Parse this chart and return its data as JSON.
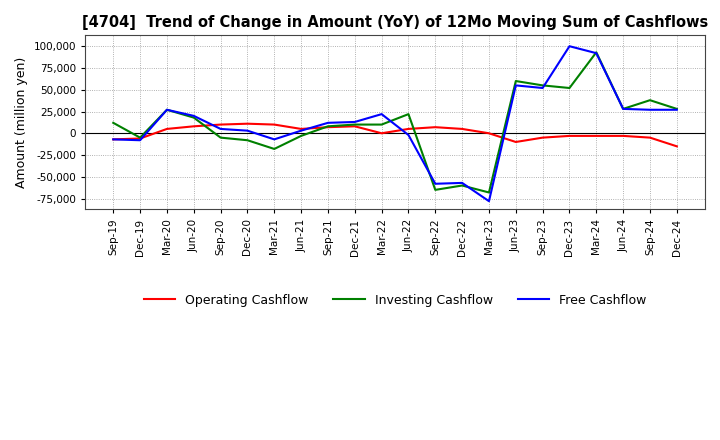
{
  "title": "[4704]  Trend of Change in Amount (YoY) of 12Mo Moving Sum of Cashflows",
  "ylabel": "Amount (million yen)",
  "background_color": "#ffffff",
  "grid_color": "#aaaaaa",
  "xlabels": [
    "Sep-19",
    "Dec-19",
    "Mar-20",
    "Jun-20",
    "Sep-20",
    "Dec-20",
    "Mar-21",
    "Jun-21",
    "Sep-21",
    "Dec-21",
    "Mar-22",
    "Jun-22",
    "Sep-22",
    "Dec-22",
    "Mar-23",
    "Jun-23",
    "Sep-23",
    "Dec-23",
    "Mar-24",
    "Jun-24",
    "Sep-24",
    "Dec-24"
  ],
  "operating": [
    -7000,
    -6000,
    5000,
    8000,
    10000,
    11000,
    10000,
    5000,
    7000,
    8000,
    0,
    5000,
    7000,
    5000,
    0,
    -10000,
    -5000,
    -3000,
    -3000,
    -3000,
    -5000,
    -15000
  ],
  "investing": [
    12000,
    -5000,
    27000,
    18000,
    -5000,
    -8000,
    -18000,
    -3000,
    8000,
    10000,
    10000,
    22000,
    -65000,
    -60000,
    -68000,
    60000,
    55000,
    52000,
    93000,
    28000,
    38000,
    28000
  ],
  "free": [
    -7000,
    -8000,
    27000,
    20000,
    5000,
    3000,
    -7000,
    3000,
    12000,
    13000,
    22000,
    -2000,
    -58000,
    -57000,
    -78000,
    55000,
    52000,
    100000,
    92000,
    28000,
    27000,
    27000
  ],
  "ylim": [
    -87500,
    112500
  ],
  "yticks": [
    -75000,
    -50000,
    -25000,
    0,
    25000,
    50000,
    75000,
    100000
  ],
  "op_color": "#ff0000",
  "inv_color": "#008000",
  "free_color": "#0000ff",
  "line_width": 1.5
}
